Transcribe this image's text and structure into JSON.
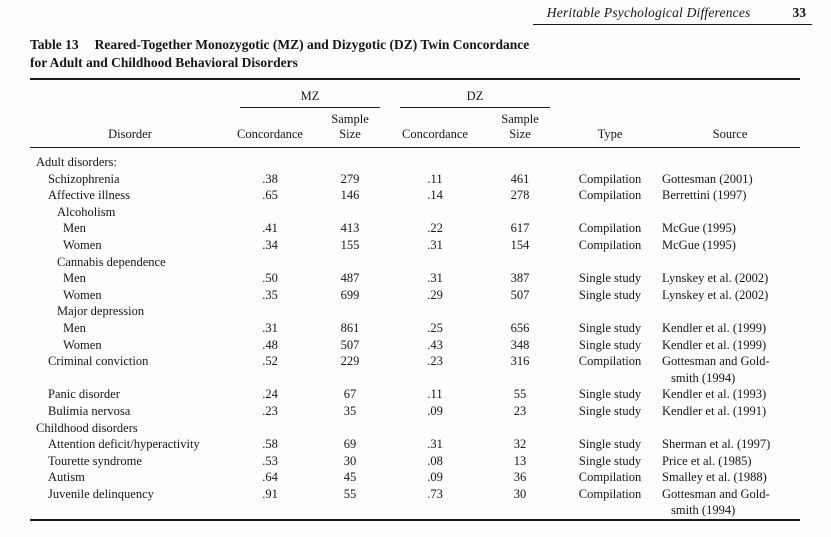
{
  "running_head": {
    "title": "Heritable Psychological Differences",
    "page_number": "33"
  },
  "table": {
    "label": "Table 13",
    "title_line1": "Reared-Together Monozygotic (MZ) and Dizygotic (DZ) Twin Concordance",
    "title_line2": "for Adult and Childhood Behavioral Disorders",
    "group_headers": {
      "mz": "MZ",
      "dz": "DZ"
    },
    "columns": {
      "disorder": "Disorder",
      "concordance": "Concordance",
      "sample": "Sample",
      "size": "Size",
      "type": "Type",
      "source": "Source"
    },
    "rows": [
      {
        "disorder": "Adult disorders:",
        "indent": 0,
        "mz_concordance": "",
        "mz_sample_size": "",
        "dz_concordance": "",
        "dz_sample_size": "",
        "type": "",
        "source_lines": []
      },
      {
        "disorder": "Schizophrenia",
        "indent": 1,
        "mz_concordance": ".38",
        "mz_sample_size": "279",
        "dz_concordance": ".11",
        "dz_sample_size": "461",
        "type": "Compilation",
        "source_lines": [
          "Gottesman (2001)"
        ]
      },
      {
        "disorder": "Affective illness",
        "indent": 1,
        "mz_concordance": ".65",
        "mz_sample_size": "146",
        "dz_concordance": ".14",
        "dz_sample_size": "278",
        "type": "Compilation",
        "source_lines": [
          "Berrettini (1997)"
        ]
      },
      {
        "disorder": "Alcoholism",
        "indent": 2,
        "mz_concordance": "",
        "mz_sample_size": "",
        "dz_concordance": "",
        "dz_sample_size": "",
        "type": "",
        "source_lines": []
      },
      {
        "disorder": "Men",
        "indent": 3,
        "mz_concordance": ".41",
        "mz_sample_size": "413",
        "dz_concordance": ".22",
        "dz_sample_size": "617",
        "type": "Compilation",
        "source_lines": [
          "McGue (1995)"
        ]
      },
      {
        "disorder": "Women",
        "indent": 3,
        "mz_concordance": ".34",
        "mz_sample_size": "155",
        "dz_concordance": ".31",
        "dz_sample_size": "154",
        "type": "Compilation",
        "source_lines": [
          "McGue (1995)"
        ]
      },
      {
        "disorder": "Cannabis dependence",
        "indent": 2,
        "mz_concordance": "",
        "mz_sample_size": "",
        "dz_concordance": "",
        "dz_sample_size": "",
        "type": "",
        "source_lines": []
      },
      {
        "disorder": "Men",
        "indent": 3,
        "mz_concordance": ".50",
        "mz_sample_size": "487",
        "dz_concordance": ".31",
        "dz_sample_size": "387",
        "type": "Single study",
        "source_lines": [
          "Lynskey et al. (2002)"
        ]
      },
      {
        "disorder": "Women",
        "indent": 3,
        "mz_concordance": ".35",
        "mz_sample_size": "699",
        "dz_concordance": ".29",
        "dz_sample_size": "507",
        "type": "Single study",
        "source_lines": [
          "Lynskey et al. (2002)"
        ]
      },
      {
        "disorder": "Major depression",
        "indent": 2,
        "mz_concordance": "",
        "mz_sample_size": "",
        "dz_concordance": "",
        "dz_sample_size": "",
        "type": "",
        "source_lines": []
      },
      {
        "disorder": "Men",
        "indent": 3,
        "mz_concordance": ".31",
        "mz_sample_size": "861",
        "dz_concordance": ".25",
        "dz_sample_size": "656",
        "type": "Single study",
        "source_lines": [
          "Kendler et al. (1999)"
        ]
      },
      {
        "disorder": "Women",
        "indent": 3,
        "mz_concordance": ".48",
        "mz_sample_size": "507",
        "dz_concordance": ".43",
        "dz_sample_size": "348",
        "type": "Single study",
        "source_lines": [
          "Kendler et al. (1999)"
        ]
      },
      {
        "disorder": "Criminal conviction",
        "indent": 1,
        "mz_concordance": ".52",
        "mz_sample_size": "229",
        "dz_concordance": ".23",
        "dz_sample_size": "316",
        "type": "Compilation",
        "source_lines": [
          "Gottesman and Gold-",
          "smith (1994)"
        ]
      },
      {
        "disorder": "Panic disorder",
        "indent": 1,
        "mz_concordance": ".24",
        "mz_sample_size": "67",
        "dz_concordance": ".11",
        "dz_sample_size": "55",
        "type": "Single study",
        "source_lines": [
          "Kendler et al. (1993)"
        ]
      },
      {
        "disorder": "Bulimia nervosa",
        "indent": 1,
        "mz_concordance": ".23",
        "mz_sample_size": "35",
        "dz_concordance": ".09",
        "dz_sample_size": "23",
        "type": "Single study",
        "source_lines": [
          "Kendler et al. (1991)"
        ]
      },
      {
        "disorder": "Childhood disorders",
        "indent": 0,
        "mz_concordance": "",
        "mz_sample_size": "",
        "dz_concordance": "",
        "dz_sample_size": "",
        "type": "",
        "source_lines": []
      },
      {
        "disorder": "Attention deficit/hyperactivity",
        "indent": 1,
        "mz_concordance": ".58",
        "mz_sample_size": "69",
        "dz_concordance": ".31",
        "dz_sample_size": "32",
        "type": "Single study",
        "source_lines": [
          "Sherman et al. (1997)"
        ]
      },
      {
        "disorder": "Tourette syndrome",
        "indent": 1,
        "mz_concordance": ".53",
        "mz_sample_size": "30",
        "dz_concordance": ".08",
        "dz_sample_size": "13",
        "type": "Single study",
        "source_lines": [
          "Price et al. (1985)"
        ]
      },
      {
        "disorder": "Autism",
        "indent": 1,
        "mz_concordance": ".64",
        "mz_sample_size": "45",
        "dz_concordance": ".09",
        "dz_sample_size": "36",
        "type": "Compilation",
        "source_lines": [
          "Smalley et al. (1988)"
        ]
      },
      {
        "disorder": "Juvenile delinquency",
        "indent": 1,
        "mz_concordance": ".91",
        "mz_sample_size": "55",
        "dz_concordance": ".73",
        "dz_sample_size": "30",
        "type": "Compilation",
        "source_lines": [
          "Gottesman and Gold-",
          "smith (1994)"
        ]
      }
    ]
  }
}
